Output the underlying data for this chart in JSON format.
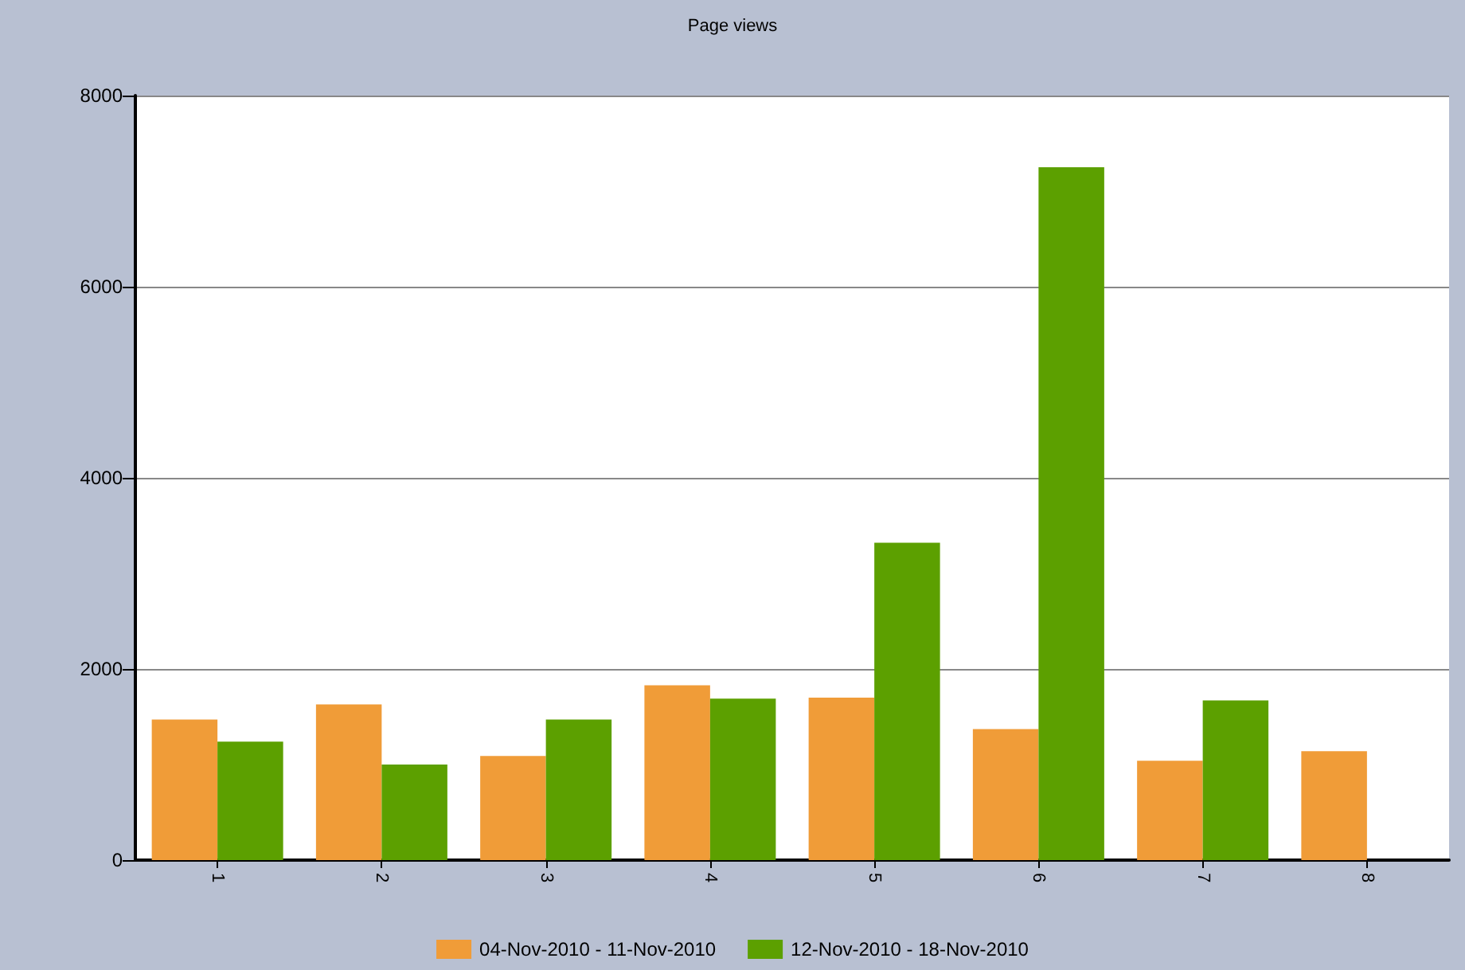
{
  "chart_data": {
    "type": "bar",
    "title": "Page views",
    "categories": [
      "1",
      "2",
      "3",
      "4",
      "5",
      "6",
      "7",
      "8"
    ],
    "series": [
      {
        "name": "04-Nov-2010 - 11-Nov-2010",
        "color": "#f09c38",
        "values": [
          1470,
          1630,
          1090,
          1830,
          1700,
          1370,
          1040,
          1140
        ]
      },
      {
        "name": "12-Nov-2010 - 18-Nov-2010",
        "color": "#5ca000",
        "values": [
          1240,
          1000,
          1470,
          1690,
          3320,
          7250,
          1670,
          null
        ]
      }
    ],
    "ylim": [
      0,
      8000
    ],
    "yticks": [
      0,
      2000,
      4000,
      6000,
      8000
    ],
    "grid": "y",
    "legend": "bottom"
  }
}
